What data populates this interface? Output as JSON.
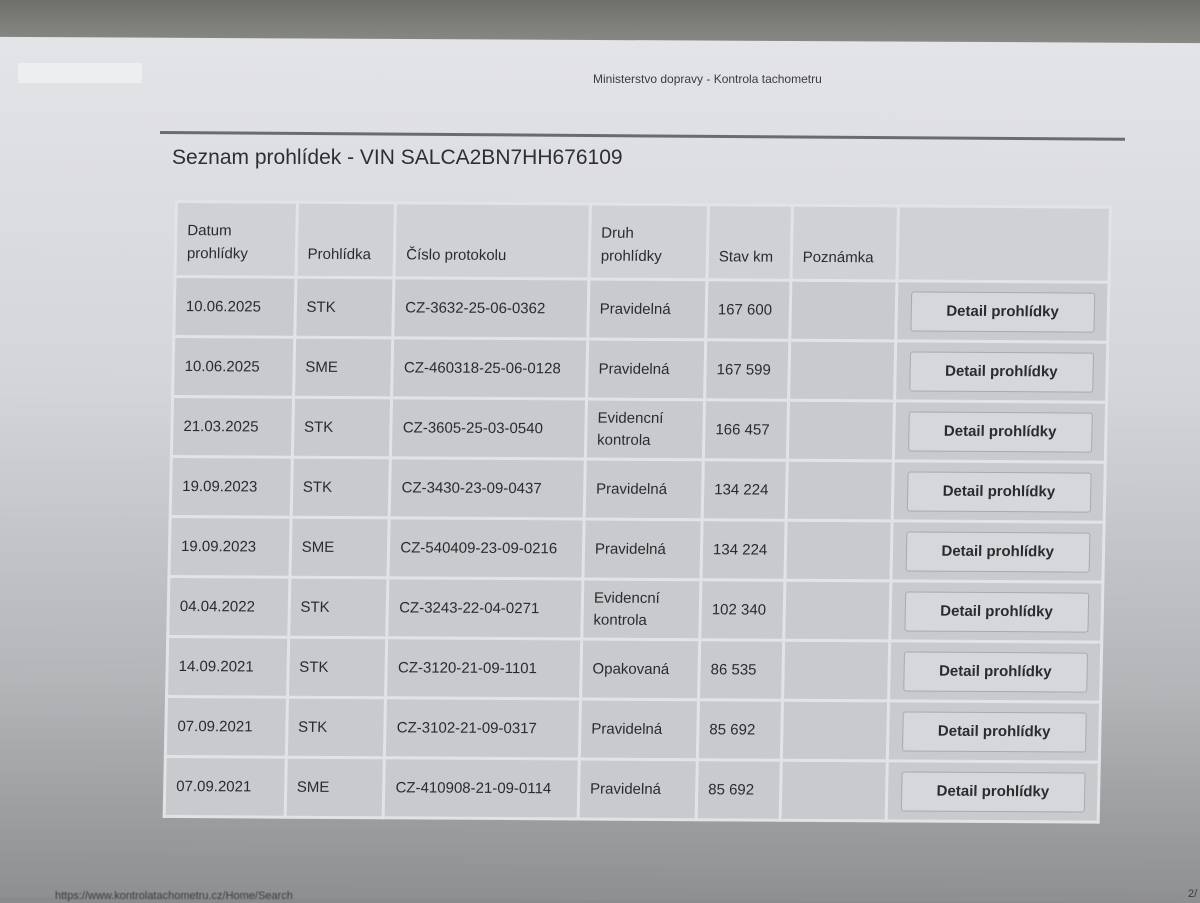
{
  "header": {
    "site_title": "Ministerstvo dopravy - Kontrola tachometru"
  },
  "page_title": "Seznam prohlídek - VIN SALCA2BN7HH676109",
  "table": {
    "columns": [
      "Datum prohlídky",
      "Prohlídka",
      "Číslo protokolu",
      "Druh prohlídky",
      "Stav km",
      "Poznámka",
      ""
    ],
    "rows": [
      {
        "date": "10.06.2025",
        "type": "STK",
        "protocol": "CZ-3632-25-06-0362",
        "kind": "Pravidelná",
        "km": "167 600",
        "note": "",
        "action": "Detail prohlídky"
      },
      {
        "date": "10.06.2025",
        "type": "SME",
        "protocol": "CZ-460318-25-06-0128",
        "kind": "Pravidelná",
        "km": "167 599",
        "note": "",
        "action": "Detail prohlídky"
      },
      {
        "date": "21.03.2025",
        "type": "STK",
        "protocol": "CZ-3605-25-03-0540",
        "kind": "Evidencní kontrola",
        "km": "166 457",
        "note": "",
        "action": "Detail prohlídky"
      },
      {
        "date": "19.09.2023",
        "type": "STK",
        "protocol": "CZ-3430-23-09-0437",
        "kind": "Pravidelná",
        "km": "134 224",
        "note": "",
        "action": "Detail prohlídky"
      },
      {
        "date": "19.09.2023",
        "type": "SME",
        "protocol": "CZ-540409-23-09-0216",
        "kind": "Pravidelná",
        "km": "134 224",
        "note": "",
        "action": "Detail prohlídky"
      },
      {
        "date": "04.04.2022",
        "type": "STK",
        "protocol": "CZ-3243-22-04-0271",
        "kind": "Evidencní kontrola",
        "km": "102 340",
        "note": "",
        "action": "Detail prohlídky"
      },
      {
        "date": "14.09.2021",
        "type": "STK",
        "protocol": "CZ-3120-21-09-1101",
        "kind": "Opakovaná",
        "km": "86 535",
        "note": "",
        "action": "Detail prohlídky"
      },
      {
        "date": "07.09.2021",
        "type": "STK",
        "protocol": "CZ-3102-21-09-0317",
        "kind": "Pravidelná",
        "km": "85 692",
        "note": "",
        "action": "Detail prohlídky"
      },
      {
        "date": "07.09.2021",
        "type": "SME",
        "protocol": "CZ-410908-21-09-0114",
        "kind": "Pravidelná",
        "km": "85 692",
        "note": "",
        "action": "Detail prohlídky"
      }
    ]
  },
  "footer": {
    "url": "https://www.kontrolatachometru.cz/Home/Search",
    "page": "2/"
  }
}
